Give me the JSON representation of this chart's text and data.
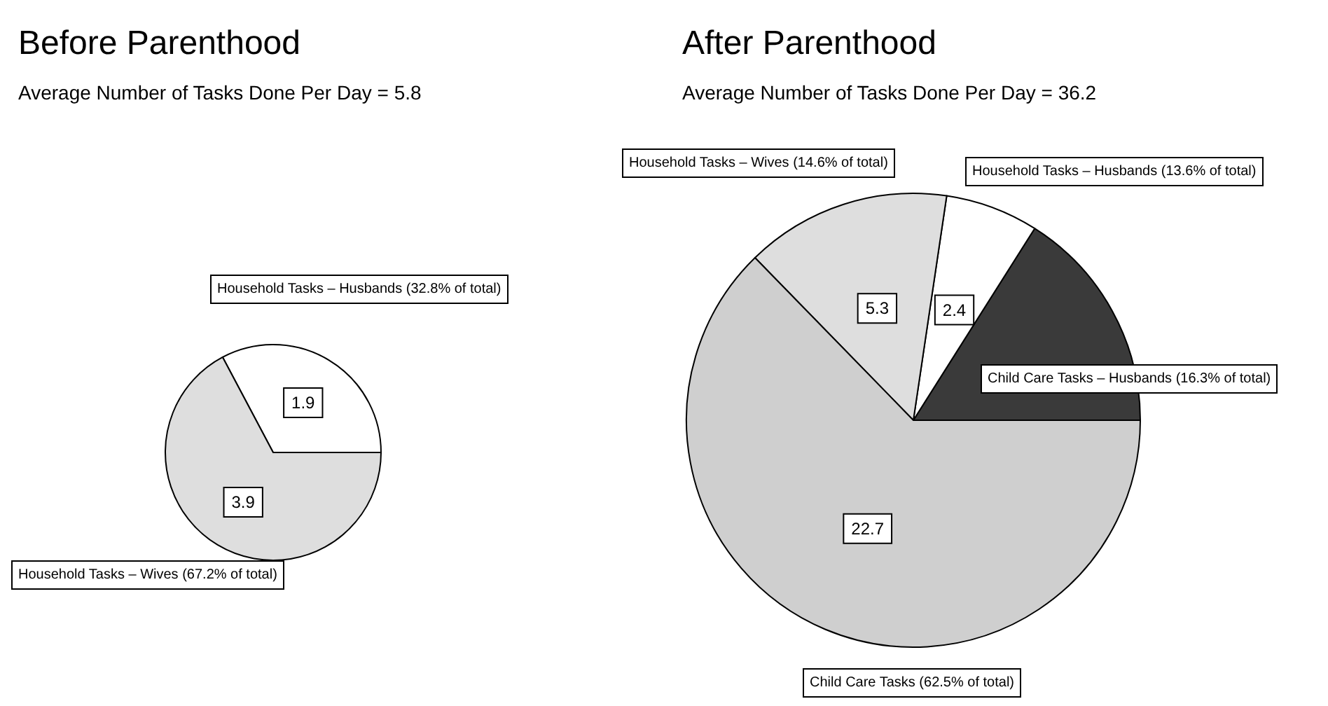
{
  "chart_data": [
    {
      "type": "pie",
      "title": "Before Parenthood",
      "subtitle": "Average Number of Tasks Done Per Day = 5.8",
      "categories": [
        "Household Tasks – Husbands (32.8% of total)",
        "Household Tasks – Wives (67.2% of total)"
      ],
      "values": [
        1.9,
        3.9
      ],
      "colors": [
        "#ffffff",
        "#dedede"
      ],
      "value_labels": [
        "1.9",
        "3.9"
      ]
    },
    {
      "type": "pie",
      "title": "After Parenthood",
      "subtitle": "Average Number of Tasks Done Per Day = 36.2",
      "categories": [
        "Child Care Tasks – Husbands (16.3% of total)",
        "Household Tasks – Husbands (13.6% of total)",
        "Household Tasks – Wives (14.6% of total)",
        "Child Care Tasks (62.5% of total)"
      ],
      "values": [
        5.8,
        2.4,
        5.3,
        22.7
      ],
      "colors": [
        "#3a3a3a",
        "#ffffff",
        "#dedede",
        "#cfcfcf"
      ],
      "value_labels": [
        null,
        "2.4",
        "5.3",
        "22.7"
      ]
    }
  ]
}
